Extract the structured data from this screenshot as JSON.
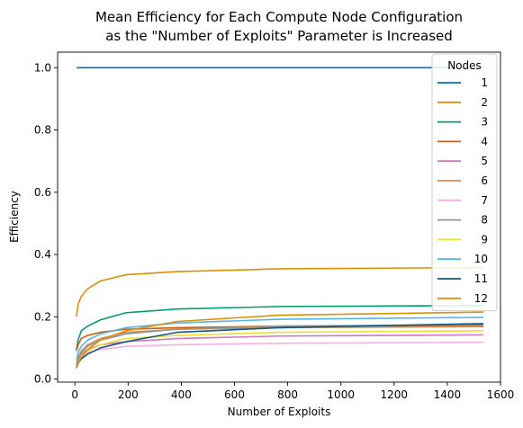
{
  "chart_data": {
    "type": "line",
    "title_lines": [
      "Mean Efficiency for Each Compute Node Configuration",
      "as the \"Number of Exploits\" Parameter is Increased"
    ],
    "xlabel": "Number of Exploits",
    "ylabel": "Efficiency",
    "xlim": [
      -65,
      1600
    ],
    "ylim": [
      -0.01,
      1.05
    ],
    "xticks": [
      0,
      200,
      400,
      600,
      800,
      1000,
      1200,
      1400,
      1600
    ],
    "yticks": [
      0.0,
      0.2,
      0.4,
      0.6,
      0.8,
      1.0
    ],
    "grid": false,
    "legend_title": "Nodes",
    "legend_position": "top-right",
    "x": [
      6,
      12,
      24,
      48,
      96,
      192,
      384,
      768,
      1536
    ],
    "series": [
      {
        "name": "1",
        "color": "#0072b2",
        "values": [
          1.0,
          1.0,
          1.0,
          1.0,
          1.0,
          1.0,
          1.0,
          1.0,
          1.0
        ]
      },
      {
        "name": "2",
        "color": "#de8f05",
        "values": [
          0.2,
          0.24,
          0.265,
          0.29,
          0.315,
          0.335,
          0.345,
          0.354,
          0.358
        ]
      },
      {
        "name": "3",
        "color": "#029e73",
        "values": [
          0.095,
          0.125,
          0.155,
          0.17,
          0.19,
          0.213,
          0.225,
          0.233,
          0.236
        ]
      },
      {
        "name": "4",
        "color": "#d55e00",
        "values": [
          0.09,
          0.11,
          0.13,
          0.14,
          0.15,
          0.16,
          0.165,
          0.17,
          0.172
        ]
      },
      {
        "name": "5",
        "color": "#cc78bc",
        "values": [
          0.045,
          0.065,
          0.08,
          0.095,
          0.11,
          0.12,
          0.13,
          0.138,
          0.142
        ]
      },
      {
        "name": "6",
        "color": "#ca9161",
        "values": [
          0.05,
          0.07,
          0.09,
          0.11,
          0.13,
          0.15,
          0.16,
          0.165,
          0.168
        ]
      },
      {
        "name": "7",
        "color": "#fbafe4",
        "values": [
          0.035,
          0.055,
          0.07,
          0.085,
          0.095,
          0.105,
          0.11,
          0.115,
          0.118
        ]
      },
      {
        "name": "8",
        "color": "#949494",
        "values": [
          0.04,
          0.06,
          0.085,
          0.105,
          0.125,
          0.145,
          0.16,
          0.17,
          0.175
        ]
      },
      {
        "name": "9",
        "color": "#ece133",
        "values": [
          0.035,
          0.05,
          0.07,
          0.09,
          0.11,
          0.13,
          0.14,
          0.15,
          0.155
        ]
      },
      {
        "name": "10",
        "color": "#56b4e9",
        "values": [
          0.06,
          0.085,
          0.105,
          0.125,
          0.145,
          0.165,
          0.18,
          0.192,
          0.198
        ]
      },
      {
        "name": "11",
        "color": "#0b5a85",
        "values": [
          0.035,
          0.05,
          0.065,
          0.08,
          0.1,
          0.12,
          0.15,
          0.165,
          0.178
        ]
      },
      {
        "name": "12",
        "color": "#de8f05",
        "values": [
          0.035,
          0.05,
          0.07,
          0.095,
          0.125,
          0.155,
          0.185,
          0.205,
          0.215
        ]
      }
    ]
  }
}
